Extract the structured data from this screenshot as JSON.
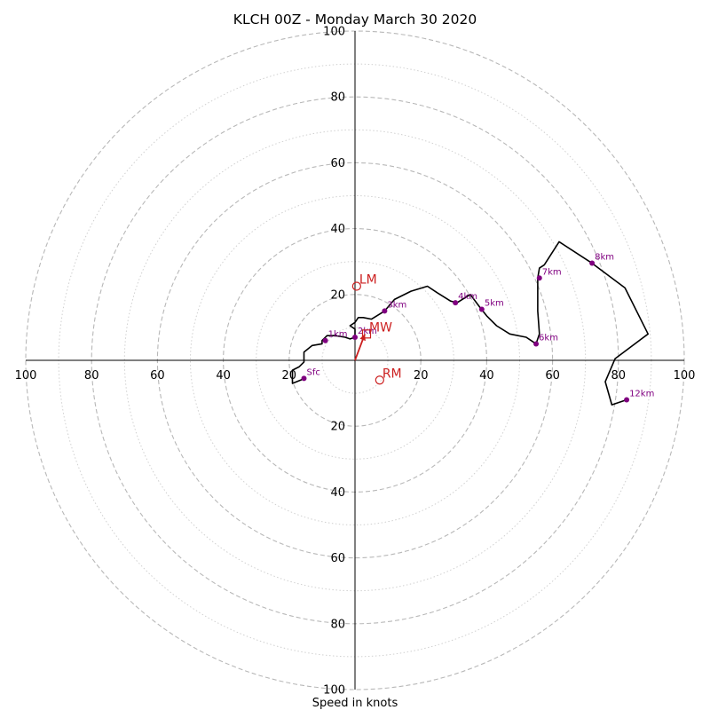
{
  "chart_data": {
    "type": "hodograph",
    "title": "KLCH 00Z - Monday March 30 2020",
    "xlabel": "Speed in knots",
    "ylabel": "",
    "xlim": [
      -100,
      100
    ],
    "ylim": [
      -100,
      100
    ],
    "rings_dashed": [
      20,
      40,
      60,
      80,
      100
    ],
    "rings_dotted": [
      10,
      30,
      50,
      70,
      90
    ],
    "x_tick_labels": [
      "100",
      "80",
      "60",
      "40",
      "20",
      "20",
      "40",
      "60",
      "80",
      "100"
    ],
    "x_tick_values": [
      -100,
      -80,
      -60,
      -40,
      -20,
      20,
      40,
      60,
      80,
      100
    ],
    "y_tick_labels": [
      "100",
      "80",
      "60",
      "40",
      "20",
      "20",
      "40",
      "60",
      "80",
      "100"
    ],
    "y_tick_values": [
      100,
      80,
      60,
      40,
      20,
      -20,
      -40,
      -60,
      -80,
      -100
    ],
    "grid": true,
    "colors": {
      "trace": "#000000",
      "height_marker": "#800080",
      "motion": "#cc1f1f",
      "grid": "#b8b8b8"
    },
    "trace": {
      "u": [
        -15.5,
        -16.5,
        -19,
        -19,
        -17,
        -15.5,
        -15.5,
        -13,
        -10,
        -10,
        -8.5,
        -6,
        -3,
        -1.5,
        0,
        0,
        0,
        -1.5,
        0,
        1,
        2.5,
        5,
        9,
        12,
        17,
        22,
        25,
        29,
        31,
        35,
        38,
        40,
        43,
        47,
        52,
        55,
        56,
        55.5,
        55.5,
        55.5,
        56,
        57.5,
        62,
        72,
        82,
        89,
        79,
        76,
        78,
        82.5
      ],
      "v": [
        -5.5,
        -6,
        -7,
        -3,
        -2,
        -0.5,
        2.5,
        4.5,
        5,
        6,
        7.5,
        7.5,
        7,
        6.5,
        7,
        7.5,
        9.5,
        10.5,
        11.5,
        13,
        13,
        12.5,
        15,
        18.5,
        21,
        22.5,
        20.5,
        18,
        17.5,
        20,
        16,
        13.5,
        10.5,
        8,
        7,
        5,
        8,
        15,
        22,
        25,
        28,
        29,
        36,
        29.5,
        22,
        8,
        0.5,
        -6.5,
        -13.5,
        -12
      ]
    },
    "height_markers": [
      {
        "label": "Sfc",
        "u": -15.5,
        "v": -5.5
      },
      {
        "label": "1km",
        "u": -9,
        "v": 6
      },
      {
        "label": "2km",
        "u": 0,
        "v": 7
      },
      {
        "label": "3km",
        "u": 9,
        "v": 15
      },
      {
        "label": "4km",
        "u": 30.5,
        "v": 17.5
      },
      {
        "label": "5km",
        "u": 38.5,
        "v": 15.5
      },
      {
        "label": "6km",
        "u": 55,
        "v": 5
      },
      {
        "label": "7km",
        "u": 56,
        "v": 25
      },
      {
        "label": "8km",
        "u": 72,
        "v": 29.5
      },
      {
        "label": "12km",
        "u": 82.5,
        "v": -12
      }
    ],
    "motions": [
      {
        "label": "LM",
        "u": 0.5,
        "v": 22.5,
        "marker": "circle"
      },
      {
        "label": "MW",
        "u": 3.5,
        "v": 8,
        "marker": "square"
      },
      {
        "label": "RM",
        "u": 7.5,
        "v": -6,
        "marker": "circle"
      }
    ],
    "motion_vector": {
      "u": 3,
      "v": 8
    }
  }
}
